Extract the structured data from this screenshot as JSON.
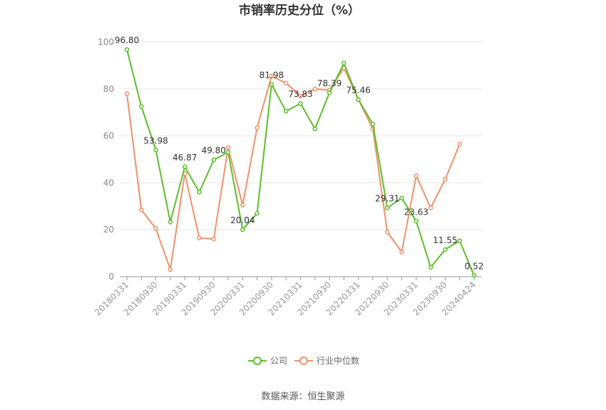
{
  "chart_data": {
    "type": "line",
    "title": "市销率历史分位（%）",
    "source": "数据来源：恒生聚源",
    "ylim": [
      0,
      100
    ],
    "yticks": [
      0,
      20,
      40,
      60,
      80,
      100
    ],
    "xlabel": "",
    "ylabel": "",
    "x_tick_labels": [
      "20180331",
      "20180930",
      "20190331",
      "20190930",
      "20200331",
      "20200930",
      "20210331",
      "20210930",
      "20220331",
      "20220930",
      "20230331",
      "20230930",
      "20240424"
    ],
    "x": [
      "20180331",
      "20180630",
      "20180930",
      "20181231",
      "20190331",
      "20190630",
      "20190930",
      "20191231",
      "20200331",
      "20200630",
      "20200930",
      "20201231",
      "20210331",
      "20210630",
      "20210930",
      "20211231",
      "20220331",
      "20220630",
      "20220930",
      "20221231",
      "20230331",
      "20230630",
      "20230930",
      "20231231",
      "20240424"
    ],
    "series": [
      {
        "name": "公司",
        "color": "#5cbf2a",
        "values": [
          96.8,
          72.5,
          53.98,
          23.3,
          46.87,
          36.0,
          49.8,
          53.0,
          20.04,
          27.0,
          81.98,
          70.5,
          73.83,
          63.0,
          78.39,
          91.0,
          75.46,
          65.0,
          29.31,
          33.5,
          23.63,
          4.0,
          11.55,
          15.3,
          0.52
        ],
        "labels": [
          "96.80",
          null,
          "53.98",
          null,
          "46.87",
          null,
          "49.80",
          null,
          "20.04",
          null,
          "81.98",
          null,
          "73.83",
          null,
          "78.39",
          null,
          "75.46",
          null,
          "29.31",
          null,
          "23.63",
          null,
          "11.55",
          null,
          "0.52"
        ]
      },
      {
        "name": "行业中位数",
        "color": "#f0916a",
        "values": [
          78.0,
          28.5,
          20.5,
          3.0,
          44.0,
          16.5,
          16.0,
          55.0,
          30.5,
          63.5,
          85.5,
          82.5,
          77.0,
          80.0,
          79.5,
          89.0,
          75.5,
          63.0,
          19.0,
          10.5,
          43.0,
          29.3,
          41.5,
          56.5,
          null
        ]
      }
    ],
    "legend_position": "bottom-center",
    "grid": true
  }
}
